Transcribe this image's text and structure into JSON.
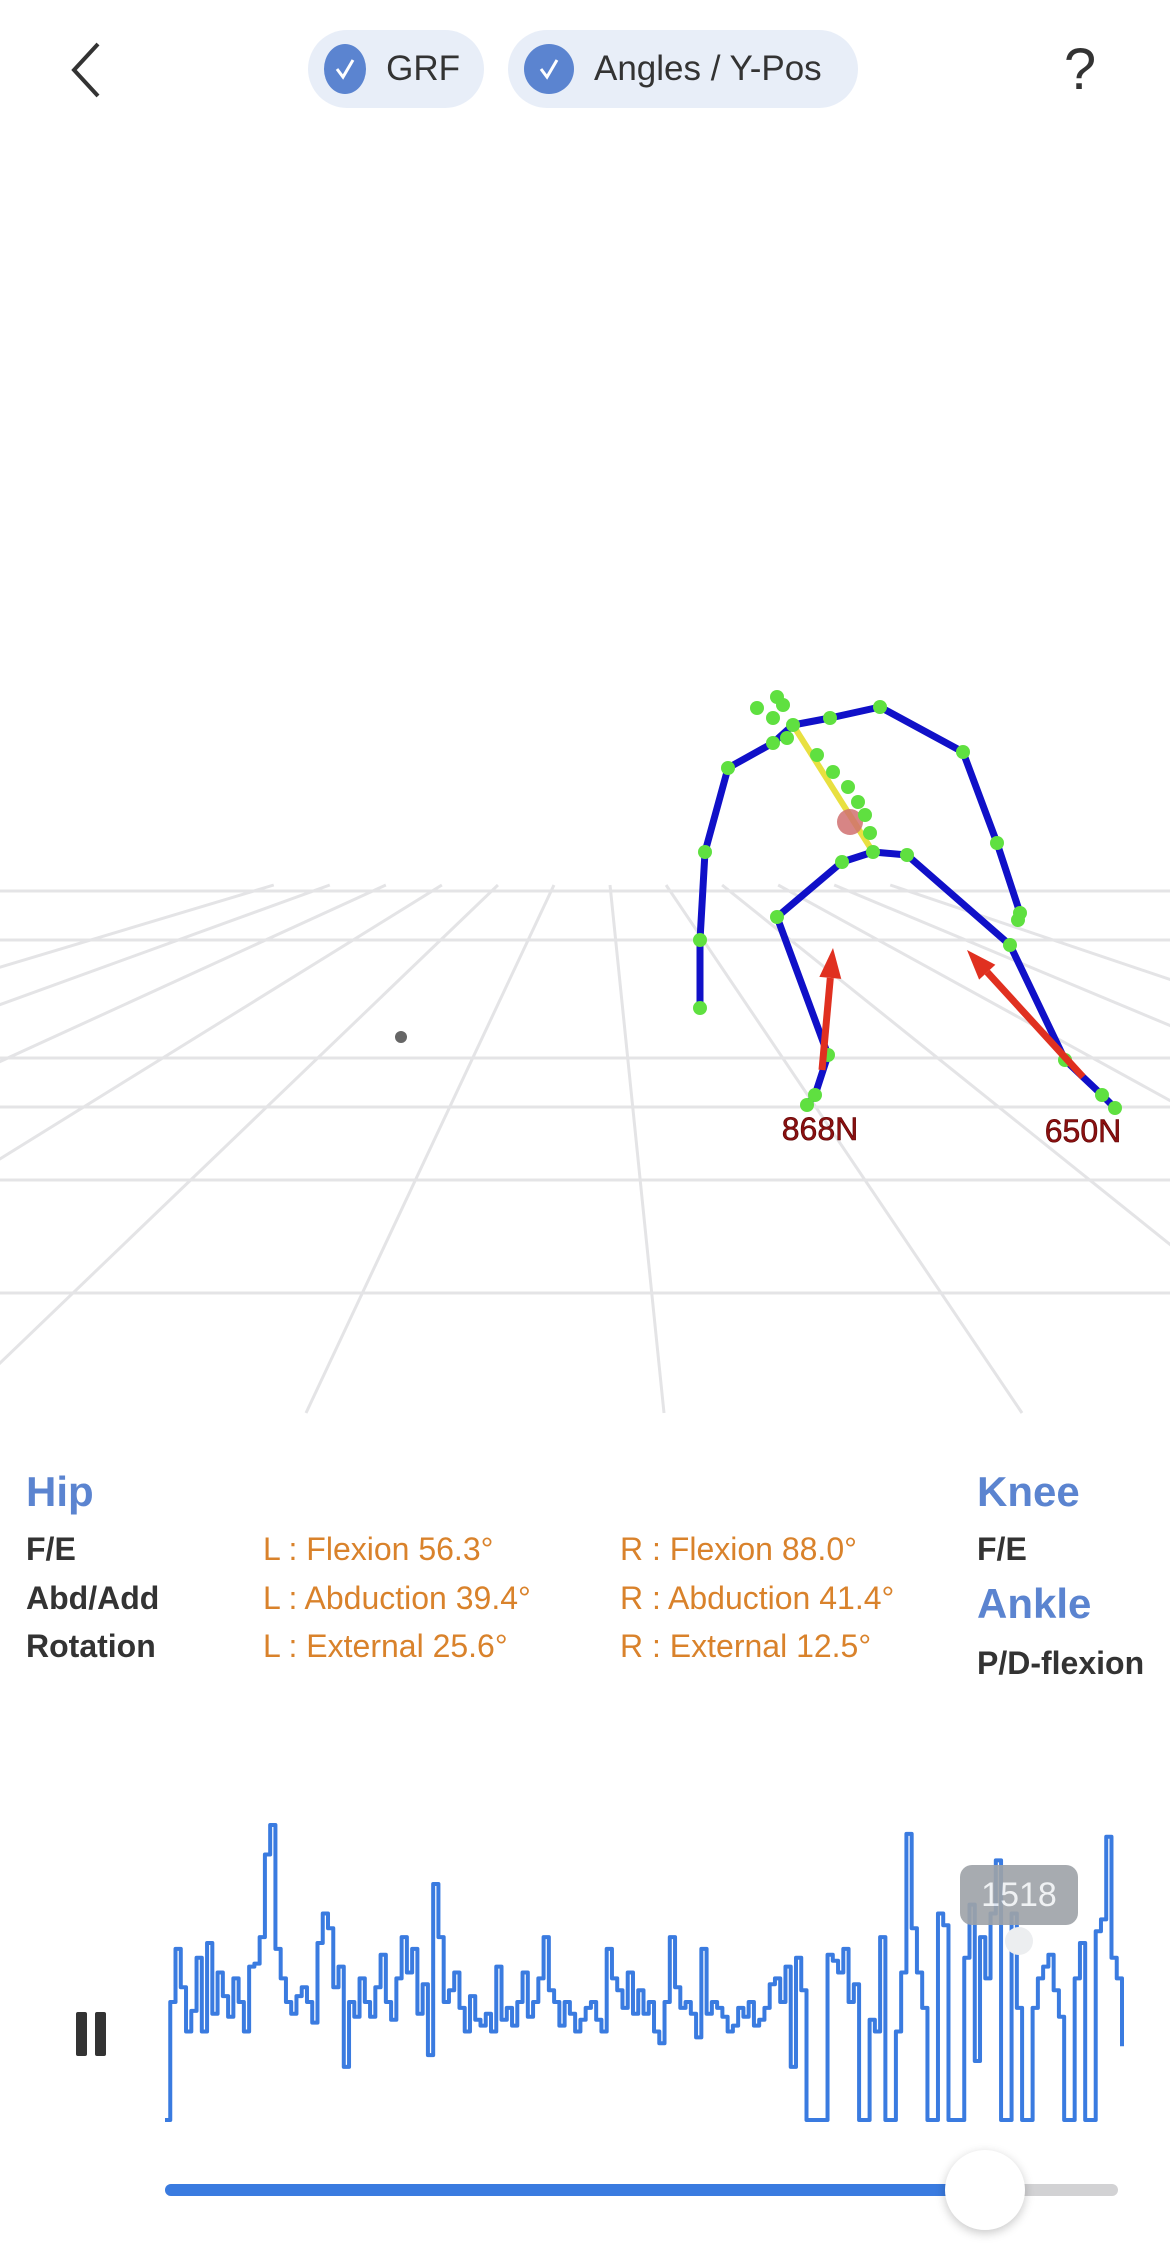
{
  "header": {
    "back_icon": "chevron-left-icon",
    "help_label": "?",
    "toggles": [
      {
        "label": "GRF",
        "checked": true
      },
      {
        "label": "Angles / Y-Pos",
        "checked": true
      }
    ],
    "accent_color": "#5b84d0"
  },
  "scene": {
    "force_labels": {
      "left": "868N",
      "right": "650N"
    },
    "colors": {
      "bone": "#1010c8",
      "joint": "#5fe040",
      "spine": "#e8e040",
      "force": "#e03020",
      "com": "#d07070"
    }
  },
  "stats": {
    "hip": {
      "title": "Hip",
      "rows": [
        {
          "label": "F/E",
          "left": "L : Flexion 56.3°",
          "right": "R : Flexion 88.0°"
        },
        {
          "label": "Abd/Add",
          "left": "L : Abduction 39.4°",
          "right": "R : Abduction 41.4°"
        },
        {
          "label": "Rotation",
          "left": "L : External 25.6°",
          "right": "R : External 12.5°"
        }
      ]
    },
    "knee": {
      "title": "Knee",
      "rows": [
        {
          "label": "F/E"
        }
      ]
    },
    "ankle": {
      "title": "Ankle",
      "rows": [
        {
          "label": "P/D-flexion"
        }
      ]
    },
    "value_color": "#d9822b"
  },
  "player": {
    "pause_icon": "pause-icon",
    "frame_tooltip": "1518",
    "progress": 0.86,
    "line_color": "#3a7be0"
  },
  "chart_data": {
    "type": "line",
    "ylim": [
      0,
      100
    ],
    "values": [
      0,
      40,
      58,
      45,
      30,
      37,
      55,
      30,
      60,
      36,
      50,
      42,
      35,
      48,
      40,
      30,
      52,
      53,
      62,
      90,
      100,
      58,
      48,
      40,
      36,
      42,
      45,
      40,
      33,
      60,
      70,
      65,
      45,
      52,
      18,
      40,
      35,
      48,
      40,
      35,
      45,
      56,
      40,
      34,
      48,
      62,
      50,
      58,
      36,
      46,
      22,
      80,
      62,
      40,
      44,
      50,
      38,
      30,
      42,
      34,
      32,
      36,
      30,
      52,
      34,
      38,
      32,
      40,
      50,
      35,
      40,
      48,
      62,
      44,
      40,
      32,
      40,
      36,
      30,
      34,
      38,
      40,
      34,
      30,
      58,
      48,
      44,
      38,
      50,
      36,
      44,
      36,
      40,
      30,
      26,
      40,
      62,
      45,
      38,
      40,
      36,
      28,
      58,
      36,
      40,
      38,
      35,
      30,
      32,
      38,
      35,
      40,
      32,
      34,
      38,
      46,
      48,
      40,
      52,
      18,
      55,
      44,
      0,
      0,
      0,
      0,
      56,
      54,
      50,
      58,
      40,
      46,
      0,
      0,
      34,
      30,
      62,
      0,
      0,
      30,
      50,
      97,
      65,
      50,
      38,
      0,
      0,
      70,
      66,
      0,
      0,
      0,
      55,
      73,
      20,
      62,
      48,
      70,
      88,
      0,
      0,
      70,
      38,
      0,
      0,
      38,
      48,
      52,
      56,
      44,
      35,
      0,
      0,
      48,
      60,
      0,
      0,
      64,
      68,
      96,
      55,
      48,
      25
    ]
  }
}
